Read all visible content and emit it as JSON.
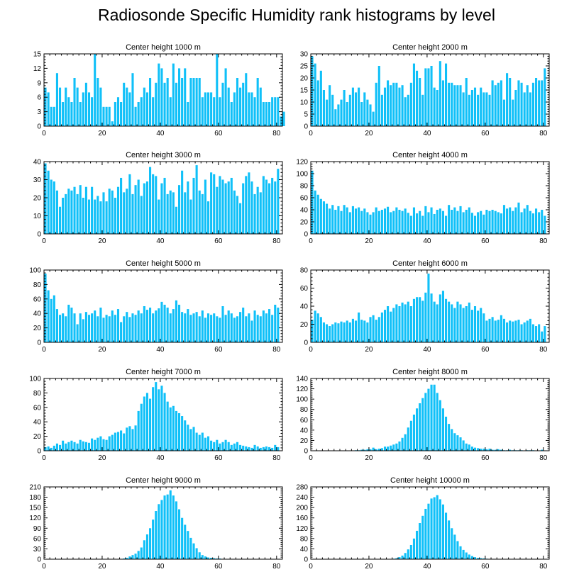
{
  "figure_title": "Radiosonde Specific Humidity rank histograms by level",
  "colors": {
    "bar": "#10c0f8",
    "axis": "#000000",
    "background": "#ffffff"
  },
  "chart_data": [
    {
      "type": "bar",
      "title": "Center height 1000 m",
      "xlabel": "",
      "ylabel": "",
      "xlim": [
        0,
        82
      ],
      "ylim": [
        0,
        15
      ],
      "xticks": [
        0,
        20,
        40,
        60,
        80
      ],
      "yticks": [
        0,
        3,
        6,
        9,
        12,
        15
      ],
      "categories_start": 0,
      "values": [
        8,
        7,
        4,
        4,
        11,
        8,
        5,
        8,
        6,
        5,
        10,
        8,
        5,
        7,
        9,
        7,
        6,
        15,
        10,
        8,
        4,
        4,
        4,
        1,
        5,
        6,
        5,
        9,
        8,
        7,
        11,
        4,
        5,
        6,
        8,
        7,
        10,
        6,
        9,
        13,
        12,
        9,
        10,
        6,
        13,
        9,
        12,
        10,
        12,
        5,
        10,
        10,
        10,
        10,
        6,
        7,
        7,
        7,
        6,
        15,
        6,
        9,
        12,
        8,
        5,
        7,
        10,
        8,
        9,
        11,
        7,
        7,
        6,
        10,
        8,
        5,
        5,
        5,
        6,
        6,
        6,
        2,
        3
      ]
    },
    {
      "type": "bar",
      "title": "Center height 2000 m",
      "xlabel": "",
      "ylabel": "",
      "xlim": [
        0,
        82
      ],
      "ylim": [
        0,
        30
      ],
      "xticks": [
        0,
        20,
        40,
        60,
        80
      ],
      "yticks": [
        0,
        5,
        10,
        15,
        20,
        25,
        30
      ],
      "categories_start": 0,
      "values": [
        29,
        26,
        19,
        23,
        15,
        11,
        17,
        13,
        7,
        9,
        11,
        15,
        10,
        13,
        16,
        14,
        16,
        10,
        14,
        11,
        9,
        6,
        18,
        25,
        13,
        16,
        19,
        17,
        18,
        18,
        16,
        17,
        12,
        13,
        18,
        26,
        23,
        20,
        13,
        24,
        24,
        25,
        16,
        15,
        27,
        19,
        26,
        18,
        18,
        17,
        17,
        17,
        14,
        20,
        13,
        15,
        16,
        13,
        16,
        14,
        14,
        13,
        19,
        17,
        18,
        19,
        11,
        22,
        20,
        11,
        15,
        19,
        18,
        14,
        17,
        14,
        18,
        20,
        19,
        19,
        24
      ]
    },
    {
      "type": "bar",
      "title": "Center height 3000 m",
      "xlabel": "",
      "ylabel": "",
      "xlim": [
        0,
        82
      ],
      "ylim": [
        0,
        40
      ],
      "xticks": [
        0,
        20,
        40,
        60,
        80
      ],
      "yticks": [
        0,
        10,
        20,
        30,
        40
      ],
      "categories_start": 0,
      "values": [
        39,
        35,
        30,
        29,
        24,
        15,
        20,
        22,
        25,
        24,
        26,
        22,
        27,
        20,
        26,
        19,
        26,
        19,
        21,
        18,
        23,
        18,
        25,
        24,
        20,
        26,
        31,
        23,
        25,
        33,
        22,
        27,
        30,
        21,
        28,
        29,
        37,
        33,
        32,
        19,
        28,
        31,
        22,
        24,
        23,
        15,
        27,
        35,
        23,
        29,
        19,
        31,
        38,
        24,
        22,
        30,
        18,
        34,
        33,
        26,
        32,
        30,
        28,
        29,
        31,
        24,
        21,
        17,
        28,
        32,
        34,
        29,
        22,
        26,
        23,
        32,
        30,
        28,
        31,
        29,
        36
      ]
    },
    {
      "type": "bar",
      "title": "Center height 4000 m",
      "xlabel": "",
      "ylabel": "",
      "xlim": [
        0,
        82
      ],
      "ylim": [
        0,
        120
      ],
      "xticks": [
        0,
        20,
        40,
        60,
        80
      ],
      "yticks": [
        0,
        20,
        40,
        60,
        80,
        100,
        120
      ],
      "categories_start": 0,
      "values": [
        105,
        72,
        65,
        58,
        54,
        50,
        42,
        48,
        40,
        46,
        38,
        48,
        44,
        36,
        46,
        42,
        44,
        38,
        42,
        36,
        32,
        36,
        44,
        38,
        40,
        42,
        45,
        36,
        38,
        44,
        40,
        38,
        42,
        35,
        30,
        44,
        34,
        38,
        30,
        46,
        36,
        44,
        33,
        40,
        42,
        38,
        30,
        48,
        40,
        44,
        38,
        46,
        36,
        40,
        44,
        35,
        30,
        36,
        38,
        32,
        40,
        38,
        40,
        38,
        36,
        34,
        48,
        42,
        44,
        38,
        44,
        52,
        36,
        42,
        48,
        38,
        34,
        42,
        36,
        40,
        30
      ]
    },
    {
      "type": "bar",
      "title": "Center height 5000 m",
      "xlabel": "",
      "ylabel": "",
      "xlim": [
        0,
        82
      ],
      "ylim": [
        0,
        100
      ],
      "xticks": [
        0,
        20,
        40,
        60,
        80
      ],
      "yticks": [
        0,
        20,
        40,
        60,
        80,
        100
      ],
      "categories_start": 0,
      "values": [
        95,
        72,
        60,
        65,
        46,
        38,
        40,
        36,
        52,
        48,
        40,
        25,
        40,
        32,
        42,
        38,
        40,
        44,
        36,
        48,
        34,
        38,
        36,
        44,
        38,
        46,
        28,
        36,
        42,
        35,
        40,
        38,
        44,
        40,
        50,
        45,
        48,
        40,
        44,
        47,
        56,
        52,
        48,
        40,
        46,
        58,
        52,
        42,
        40,
        46,
        38,
        40,
        42,
        36,
        44,
        34,
        40,
        38,
        40,
        36,
        34,
        50,
        38,
        44,
        40,
        34,
        36,
        42,
        48,
        36,
        40,
        30,
        44,
        38,
        36,
        44,
        40,
        46,
        38,
        52,
        48
      ]
    },
    {
      "type": "bar",
      "title": "Center height 6000 m",
      "xlabel": "",
      "ylabel": "",
      "xlim": [
        0,
        82
      ],
      "ylim": [
        0,
        80
      ],
      "xticks": [
        0,
        20,
        40,
        60,
        80
      ],
      "yticks": [
        0,
        20,
        40,
        60,
        80
      ],
      "categories_start": 0,
      "values": [
        25,
        35,
        32,
        28,
        22,
        20,
        18,
        20,
        22,
        21,
        23,
        22,
        24,
        22,
        26,
        24,
        33,
        25,
        24,
        22,
        28,
        30,
        25,
        28,
        33,
        36,
        40,
        34,
        38,
        42,
        40,
        44,
        42,
        45,
        40,
        48,
        50,
        50,
        46,
        55,
        76,
        54,
        45,
        42,
        53,
        57,
        48,
        45,
        42,
        38,
        45,
        42,
        38,
        40,
        44,
        36,
        40,
        35,
        38,
        32,
        24,
        26,
        28,
        24,
        25,
        30,
        26,
        22,
        24,
        23,
        24,
        25,
        20,
        22,
        24,
        26,
        20,
        18,
        20,
        12,
        18
      ]
    },
    {
      "type": "bar",
      "title": "Center height 7000 m",
      "xlabel": "",
      "ylabel": "",
      "xlim": [
        0,
        82
      ],
      "ylim": [
        0,
        100
      ],
      "xticks": [
        0,
        20,
        40,
        60,
        80
      ],
      "yticks": [
        0,
        20,
        40,
        60,
        80,
        100
      ],
      "categories_start": 0,
      "values": [
        5,
        6,
        4,
        7,
        10,
        8,
        14,
        10,
        12,
        14,
        12,
        10,
        15,
        13,
        12,
        11,
        17,
        15,
        18,
        20,
        16,
        15,
        20,
        22,
        25,
        26,
        28,
        24,
        32,
        34,
        30,
        35,
        55,
        65,
        75,
        80,
        72,
        88,
        95,
        85,
        90,
        80,
        68,
        60,
        62,
        55,
        52,
        48,
        42,
        36,
        30,
        33,
        25,
        22,
        25,
        18,
        20,
        14,
        12,
        15,
        10,
        12,
        15,
        12,
        8,
        10,
        12,
        8,
        7,
        6,
        5,
        4,
        8,
        6,
        4,
        5,
        6,
        5,
        4,
        8,
        5
      ]
    },
    {
      "type": "bar",
      "title": "Center height 8000 m",
      "xlabel": "",
      "ylabel": "",
      "xlim": [
        0,
        82
      ],
      "ylim": [
        0,
        140
      ],
      "xticks": [
        0,
        20,
        40,
        60,
        80
      ],
      "yticks": [
        0,
        20,
        40,
        60,
        80,
        100,
        120,
        140
      ],
      "categories_start": 0,
      "values": [
        0,
        0,
        0,
        0,
        0,
        0,
        0,
        0,
        0,
        0,
        0,
        0,
        0,
        0,
        0,
        1,
        1,
        2,
        2,
        3,
        3,
        6,
        3,
        4,
        5,
        8,
        8,
        10,
        12,
        14,
        18,
        25,
        32,
        45,
        58,
        70,
        82,
        92,
        102,
        112,
        120,
        128,
        128,
        112,
        98,
        82,
        66,
        52,
        42,
        34,
        30,
        26,
        20,
        14,
        12,
        8,
        6,
        5,
        4,
        4,
        3,
        4,
        2,
        2,
        3,
        2,
        1,
        1,
        2,
        1,
        1,
        1,
        1,
        0,
        1,
        1,
        1,
        0,
        0,
        2,
        0
      ]
    },
    {
      "type": "bar",
      "title": "Center height 9000 m",
      "xlabel": "",
      "ylabel": "",
      "xlim": [
        0,
        82
      ],
      "ylim": [
        0,
        210
      ],
      "xticks": [
        0,
        20,
        40,
        60,
        80
      ],
      "yticks": [
        0,
        30,
        60,
        90,
        120,
        150,
        180,
        210
      ],
      "categories_start": 0,
      "values": [
        0,
        0,
        0,
        0,
        0,
        0,
        0,
        0,
        0,
        0,
        0,
        0,
        0,
        0,
        0,
        0,
        0,
        0,
        0,
        0,
        0,
        0,
        0,
        0,
        0,
        1,
        1,
        2,
        4,
        8,
        12,
        16,
        24,
        34,
        55,
        72,
        90,
        115,
        140,
        160,
        172,
        185,
        188,
        200,
        185,
        168,
        145,
        120,
        100,
        82,
        62,
        46,
        32,
        20,
        12,
        8,
        5,
        4,
        3,
        2,
        2,
        1,
        1,
        1,
        1,
        0,
        0,
        0,
        0,
        0,
        0,
        0,
        0,
        0,
        0,
        0,
        0,
        0,
        0,
        0,
        0
      ]
    },
    {
      "type": "bar",
      "title": "Center height 10000 m",
      "xlabel": "",
      "ylabel": "",
      "xlim": [
        0,
        82
      ],
      "ylim": [
        0,
        280
      ],
      "xticks": [
        0,
        20,
        40,
        60,
        80
      ],
      "yticks": [
        0,
        40,
        80,
        120,
        160,
        200,
        240,
        280
      ],
      "categories_start": 0,
      "values": [
        0,
        0,
        0,
        0,
        0,
        0,
        0,
        0,
        0,
        0,
        0,
        0,
        0,
        0,
        0,
        0,
        0,
        0,
        0,
        0,
        0,
        0,
        0,
        0,
        0,
        0,
        0,
        1,
        2,
        4,
        8,
        14,
        24,
        38,
        55,
        80,
        110,
        140,
        168,
        195,
        215,
        235,
        240,
        248,
        232,
        212,
        180,
        150,
        120,
        95,
        70,
        50,
        36,
        26,
        18,
        12,
        8,
        5,
        4,
        3,
        2,
        1,
        1,
        1,
        0,
        0,
        0,
        0,
        0,
        0,
        0,
        0,
        0,
        0,
        0,
        0,
        0,
        0,
        0,
        0,
        0
      ]
    }
  ]
}
